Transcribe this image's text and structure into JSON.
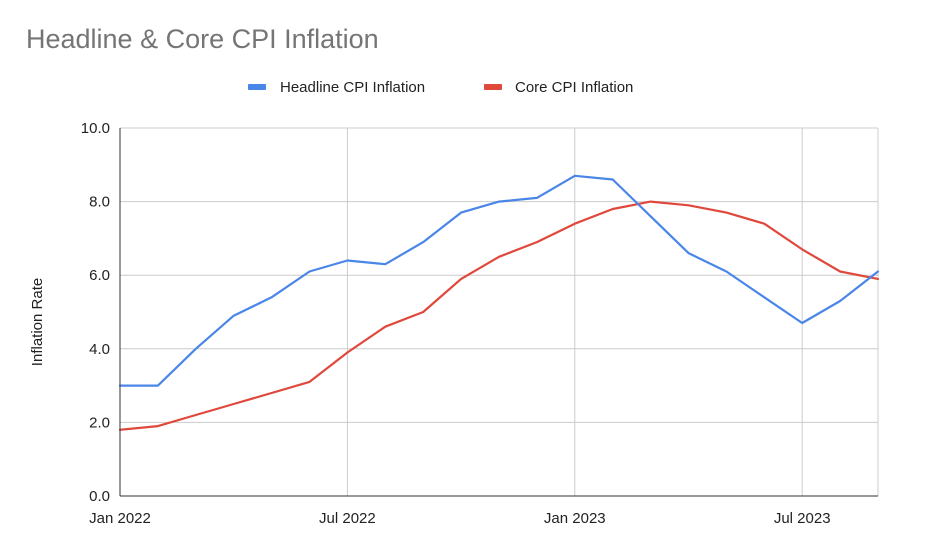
{
  "chart_data": {
    "type": "line",
    "title": "Headline & Core CPI Inflation",
    "xlabel": "",
    "ylabel": "Inflation Rate",
    "ylim": [
      0,
      10
    ],
    "yticks": [
      "0.0",
      "2.0",
      "4.0",
      "6.0",
      "8.0",
      "10.0"
    ],
    "xticks": [
      "Jan 2022",
      "Jul 2022",
      "Jan 2023",
      "Jul 2023"
    ],
    "x": [
      "2022-01",
      "2022-02",
      "2022-03",
      "2022-04",
      "2022-05",
      "2022-06",
      "2022-07",
      "2022-08",
      "2022-09",
      "2022-10",
      "2022-11",
      "2022-12",
      "2023-01",
      "2023-02",
      "2023-03",
      "2023-04",
      "2023-05",
      "2023-06",
      "2023-07",
      "2023-08",
      "2023-09"
    ],
    "grid": true,
    "legend_position": "top",
    "series": [
      {
        "name": "Headline CPI Inflation",
        "color": "#4a86e8",
        "values": [
          3.0,
          3.0,
          4.0,
          4.9,
          5.4,
          6.1,
          6.4,
          6.3,
          6.9,
          7.7,
          8.0,
          8.1,
          8.7,
          8.6,
          7.6,
          6.6,
          6.1,
          5.4,
          4.7,
          5.3,
          6.1
        ]
      },
      {
        "name": "Core CPI Inflation",
        "color": "#e0483c",
        "values": [
          1.8,
          1.9,
          2.2,
          2.5,
          2.8,
          3.1,
          3.9,
          4.6,
          5.0,
          5.9,
          6.5,
          6.9,
          7.4,
          7.8,
          8.0,
          7.9,
          7.7,
          7.4,
          6.7,
          6.1,
          5.9
        ]
      }
    ]
  }
}
